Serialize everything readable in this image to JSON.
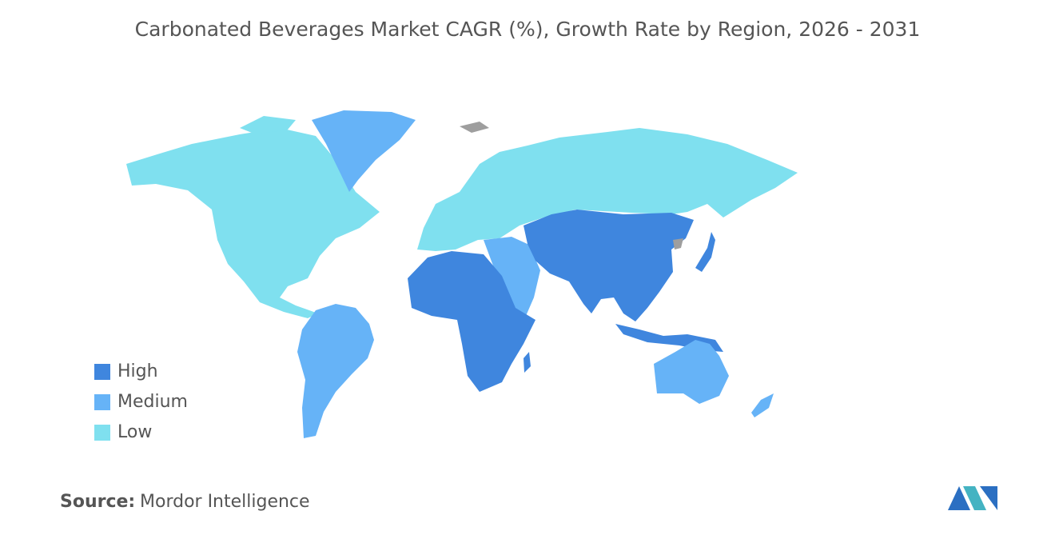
{
  "title": "Carbonated Beverages Market CAGR (%), Growth Rate by Region, 2026 - 2031",
  "legend": [
    {
      "label": "High",
      "color": "#3f86de"
    },
    {
      "label": "Medium",
      "color": "#66b3f7"
    },
    {
      "label": "Low",
      "color": "#7fe0ef"
    }
  ],
  "source": {
    "label": "Source:",
    "text": "Mordor Intelligence"
  }
}
